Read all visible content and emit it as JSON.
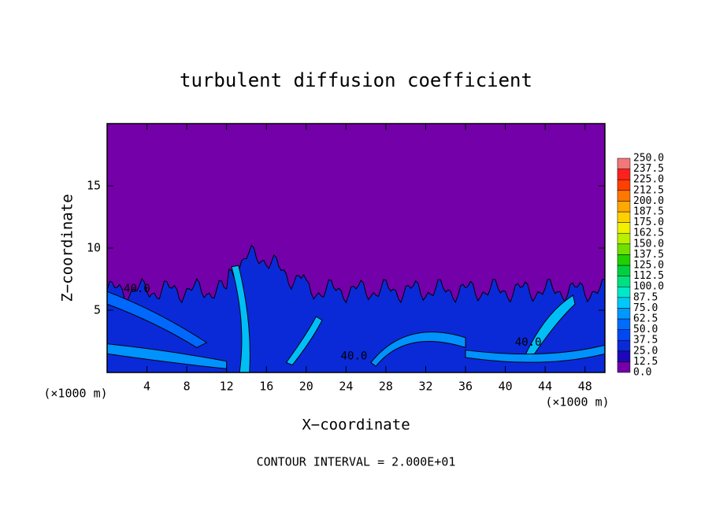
{
  "chart_data": {
    "type": "contour",
    "title": "turbulent diffusion coefficient",
    "x_label": "X−coordinate",
    "y_label": "Z−coordinate",
    "x_unit": "(×1000 m)",
    "footer": "CONTOUR INTERVAL = 2.000E+01",
    "contour_labels": [
      "40.0",
      "40.0",
      "40.0"
    ],
    "xlim": [
      0,
      50
    ],
    "ylim": [
      0,
      20
    ],
    "xticks": [
      4,
      8,
      12,
      16,
      20,
      24,
      28,
      32,
      36,
      40,
      44,
      48
    ],
    "yticks": [
      5,
      10,
      15
    ],
    "colorbar": {
      "ticks": [
        {
          "value": 0,
          "label": "0.0"
        },
        12.5,
        {
          "value": 25,
          "label": "25.0"
        },
        37.5,
        {
          "value": 50,
          "label": "50.0"
        },
        62.5,
        {
          "value": 75,
          "label": "75.0"
        },
        87.5,
        {
          "value": 100,
          "label": "100.0"
        },
        112.5,
        {
          "value": 125,
          "label": "125.0"
        },
        137.5,
        {
          "value": 150,
          "label": "150.0"
        },
        162.5,
        {
          "value": 175,
          "label": "175.0"
        },
        187.5,
        {
          "value": 200,
          "label": "200.0"
        },
        212.5,
        {
          "value": 225,
          "label": "225.0"
        },
        237.5,
        {
          "value": 250,
          "label": "250.0"
        }
      ],
      "colors": [
        "#7300a8",
        "#1c08b8",
        "#0a2ad8",
        "#0048f0",
        "#006cff",
        "#0098ff",
        "#00c8f8",
        "#00e8c8",
        "#00e080",
        "#00d040",
        "#20d000",
        "#70e000",
        "#b8f000",
        "#f0f000",
        "#ffd000",
        "#ffa800",
        "#ff7800",
        "#ff4000",
        "#ff2020",
        "#f07878"
      ]
    }
  }
}
